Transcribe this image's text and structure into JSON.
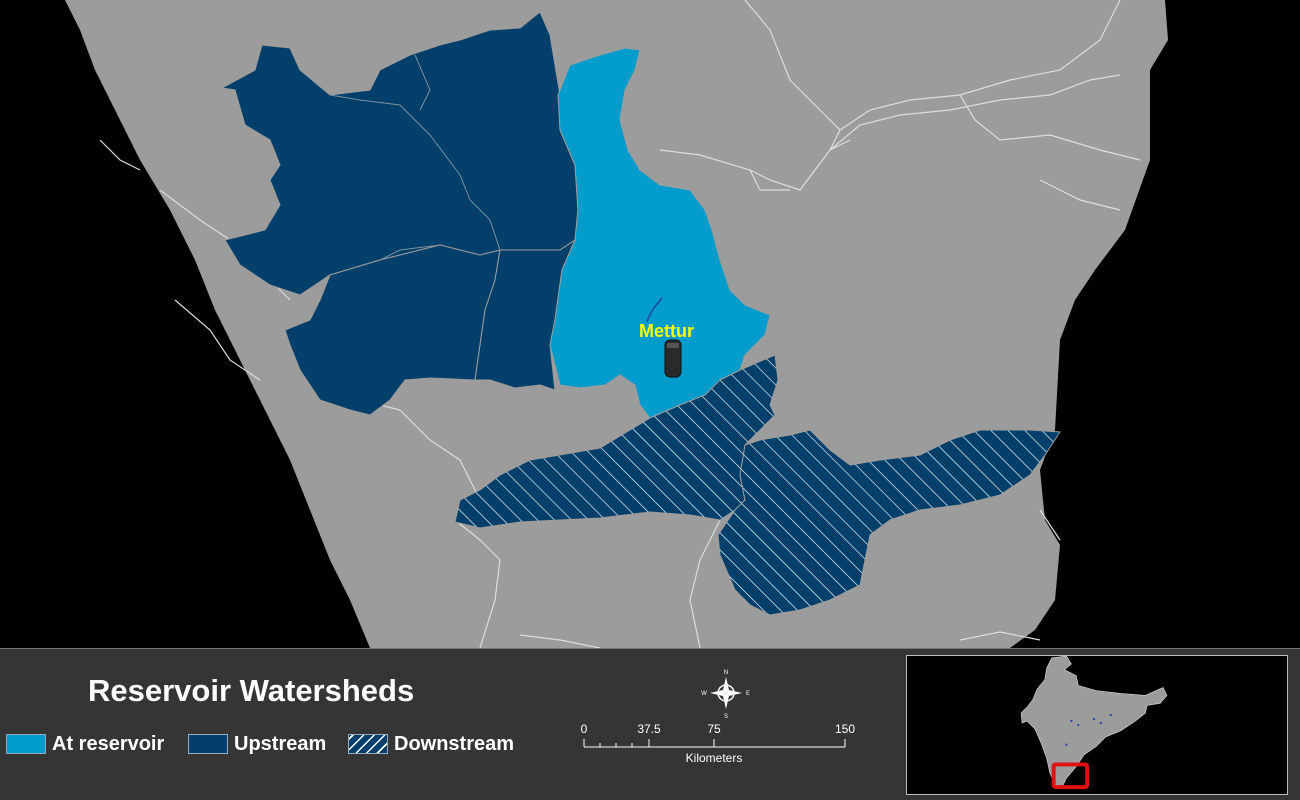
{
  "map": {
    "place_label": "Mettur",
    "colors": {
      "background": "#000000",
      "land": "#9c9c9c",
      "boundary": "#dddddd",
      "at_reservoir": "#009ccc",
      "upstream": "#023f6a",
      "downstream": "#023f6a",
      "hatch": "#ffffff"
    },
    "icons": {
      "reservoir": "dam-tower-icon"
    }
  },
  "legend": {
    "title": "Reservoir Watersheds",
    "items": [
      {
        "label": "At reservoir",
        "style": "solid",
        "color": "#009ccc"
      },
      {
        "label": "Upstream",
        "style": "solid",
        "color": "#023f6a"
      },
      {
        "label": "Downstream",
        "style": "hatched",
        "color": "#023f6a"
      }
    ]
  },
  "north_arrow": {
    "n": "N",
    "s": "S",
    "e": "E",
    "w": "W",
    "icon": "compass-icon"
  },
  "scale_bar": {
    "ticks": [
      "0",
      "37.5",
      "75",
      "150"
    ],
    "units": "Kilometers"
  },
  "inset": {
    "region": "India",
    "highlight_color": "#e01010"
  }
}
